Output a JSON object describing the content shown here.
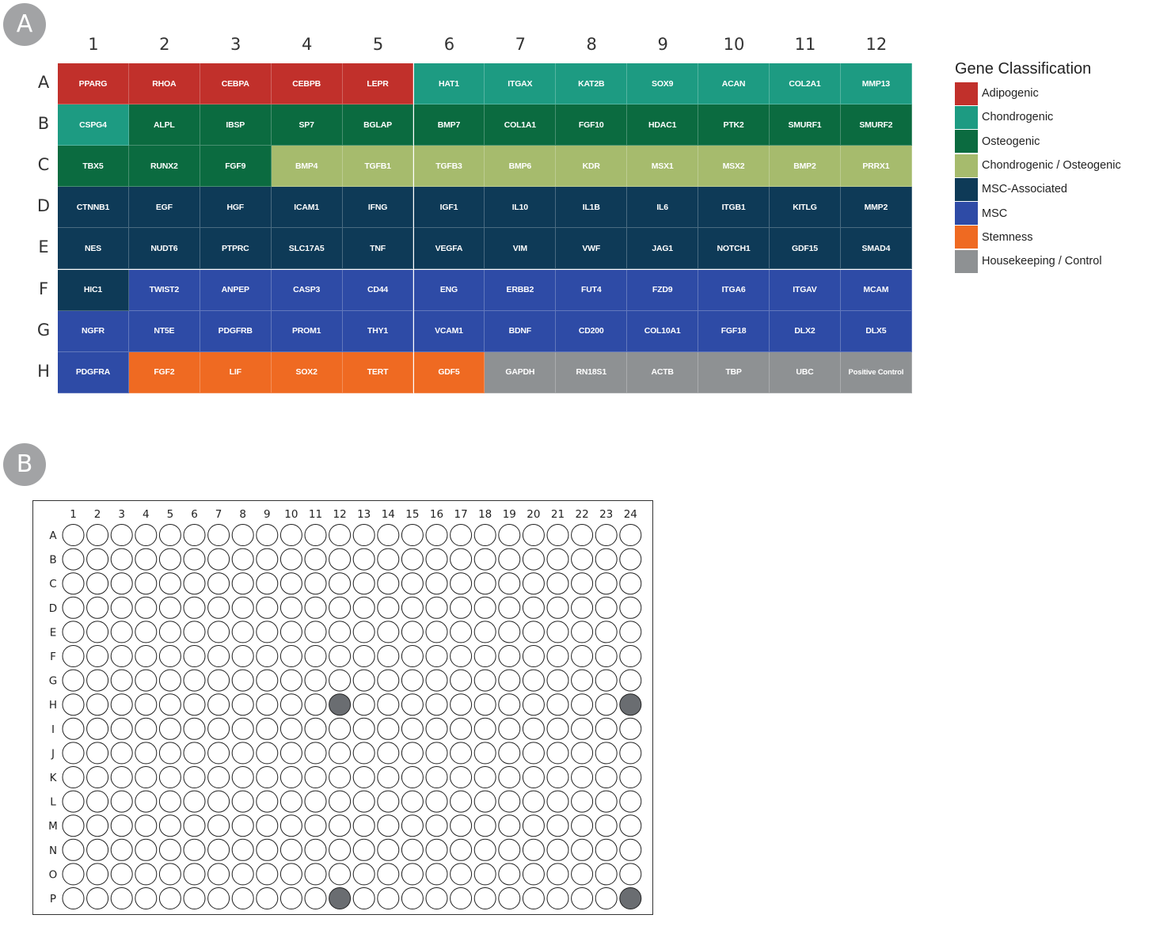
{
  "panel_a": {
    "badge": "A",
    "columns": [
      "1",
      "2",
      "3",
      "4",
      "5",
      "6",
      "7",
      "8",
      "9",
      "10",
      "11",
      "12"
    ],
    "rows": [
      "A",
      "B",
      "C",
      "D",
      "E",
      "F",
      "G",
      "H"
    ],
    "classes": {
      "adipogenic": {
        "label": "Adipogenic",
        "color": "#c1302b"
      },
      "chondrogenic": {
        "label": "Chondrogenic",
        "color": "#1d9b82"
      },
      "osteogenic": {
        "label": "Osteogenic",
        "color": "#0b6b40"
      },
      "chondro_osteo": {
        "label": "Chondrogenic / Osteogenic",
        "color": "#a6bb6d"
      },
      "msc_assoc": {
        "label": "MSC-Associated",
        "color": "#0e3a57"
      },
      "msc": {
        "label": "MSC",
        "color": "#2e4ba6"
      },
      "stemness": {
        "label": "Stemness",
        "color": "#ef6a22"
      },
      "housekeeping": {
        "label": "Housekeeping / Control",
        "color": "#8e9193"
      }
    },
    "legend": {
      "title": "Gene Classification",
      "order": [
        "adipogenic",
        "chondrogenic",
        "osteogenic",
        "chondro_osteo",
        "msc_assoc",
        "msc",
        "stemness",
        "housekeeping"
      ]
    },
    "wells": [
      [
        {
          "gene": "PPARG",
          "class": "adipogenic"
        },
        {
          "gene": "RHOA",
          "class": "adipogenic"
        },
        {
          "gene": "CEBPA",
          "class": "adipogenic"
        },
        {
          "gene": "CEBPB",
          "class": "adipogenic"
        },
        {
          "gene": "LEPR",
          "class": "adipogenic"
        },
        {
          "gene": "HAT1",
          "class": "chondrogenic"
        },
        {
          "gene": "ITGAX",
          "class": "chondrogenic"
        },
        {
          "gene": "KAT2B",
          "class": "chondrogenic"
        },
        {
          "gene": "SOX9",
          "class": "chondrogenic"
        },
        {
          "gene": "ACAN",
          "class": "chondrogenic"
        },
        {
          "gene": "COL2A1",
          "class": "chondrogenic"
        },
        {
          "gene": "MMP13",
          "class": "chondrogenic"
        }
      ],
      [
        {
          "gene": "CSPG4",
          "class": "chondrogenic"
        },
        {
          "gene": "ALPL",
          "class": "osteogenic"
        },
        {
          "gene": "IBSP",
          "class": "osteogenic"
        },
        {
          "gene": "SP7",
          "class": "osteogenic"
        },
        {
          "gene": "BGLAP",
          "class": "osteogenic"
        },
        {
          "gene": "BMP7",
          "class": "osteogenic"
        },
        {
          "gene": "COL1A1",
          "class": "osteogenic"
        },
        {
          "gene": "FGF10",
          "class": "osteogenic"
        },
        {
          "gene": "HDAC1",
          "class": "osteogenic"
        },
        {
          "gene": "PTK2",
          "class": "osteogenic"
        },
        {
          "gene": "SMURF1",
          "class": "osteogenic"
        },
        {
          "gene": "SMURF2",
          "class": "osteogenic"
        }
      ],
      [
        {
          "gene": "TBX5",
          "class": "osteogenic"
        },
        {
          "gene": "RUNX2",
          "class": "osteogenic"
        },
        {
          "gene": "FGF9",
          "class": "osteogenic"
        },
        {
          "gene": "BMP4",
          "class": "chondro_osteo"
        },
        {
          "gene": "TGFB1",
          "class": "chondro_osteo"
        },
        {
          "gene": "TGFB3",
          "class": "chondro_osteo"
        },
        {
          "gene": "BMP6",
          "class": "chondro_osteo"
        },
        {
          "gene": "KDR",
          "class": "chondro_osteo"
        },
        {
          "gene": "MSX1",
          "class": "chondro_osteo"
        },
        {
          "gene": "MSX2",
          "class": "chondro_osteo"
        },
        {
          "gene": "BMP2",
          "class": "chondro_osteo"
        },
        {
          "gene": "PRRX1",
          "class": "chondro_osteo"
        }
      ],
      [
        {
          "gene": "CTNNB1",
          "class": "msc_assoc"
        },
        {
          "gene": "EGF",
          "class": "msc_assoc"
        },
        {
          "gene": "HGF",
          "class": "msc_assoc"
        },
        {
          "gene": "ICAM1",
          "class": "msc_assoc"
        },
        {
          "gene": "IFNG",
          "class": "msc_assoc"
        },
        {
          "gene": "IGF1",
          "class": "msc_assoc"
        },
        {
          "gene": "IL10",
          "class": "msc_assoc"
        },
        {
          "gene": "IL1B",
          "class": "msc_assoc"
        },
        {
          "gene": "IL6",
          "class": "msc_assoc"
        },
        {
          "gene": "ITGB1",
          "class": "msc_assoc"
        },
        {
          "gene": "KITLG",
          "class": "msc_assoc"
        },
        {
          "gene": "MMP2",
          "class": "msc_assoc"
        }
      ],
      [
        {
          "gene": "NES",
          "class": "msc_assoc"
        },
        {
          "gene": "NUDT6",
          "class": "msc_assoc"
        },
        {
          "gene": "PTPRC",
          "class": "msc_assoc"
        },
        {
          "gene": "SLC17A5",
          "class": "msc_assoc"
        },
        {
          "gene": "TNF",
          "class": "msc_assoc"
        },
        {
          "gene": "VEGFA",
          "class": "msc_assoc"
        },
        {
          "gene": "VIM",
          "class": "msc_assoc"
        },
        {
          "gene": "VWF",
          "class": "msc_assoc"
        },
        {
          "gene": "JAG1",
          "class": "msc_assoc"
        },
        {
          "gene": "NOTCH1",
          "class": "msc_assoc"
        },
        {
          "gene": "GDF15",
          "class": "msc_assoc"
        },
        {
          "gene": "SMAD4",
          "class": "msc_assoc"
        }
      ],
      [
        {
          "gene": "HIC1",
          "class": "msc_assoc"
        },
        {
          "gene": "TWIST2",
          "class": "msc"
        },
        {
          "gene": "ANPEP",
          "class": "msc"
        },
        {
          "gene": "CASP3",
          "class": "msc"
        },
        {
          "gene": "CD44",
          "class": "msc"
        },
        {
          "gene": "ENG",
          "class": "msc"
        },
        {
          "gene": "ERBB2",
          "class": "msc"
        },
        {
          "gene": "FUT4",
          "class": "msc"
        },
        {
          "gene": "FZD9",
          "class": "msc"
        },
        {
          "gene": "ITGA6",
          "class": "msc"
        },
        {
          "gene": "ITGAV",
          "class": "msc"
        },
        {
          "gene": "MCAM",
          "class": "msc"
        }
      ],
      [
        {
          "gene": "NGFR",
          "class": "msc"
        },
        {
          "gene": "NT5E",
          "class": "msc"
        },
        {
          "gene": "PDGFRB",
          "class": "msc"
        },
        {
          "gene": "PROM1",
          "class": "msc"
        },
        {
          "gene": "THY1",
          "class": "msc"
        },
        {
          "gene": "VCAM1",
          "class": "msc"
        },
        {
          "gene": "BDNF",
          "class": "msc"
        },
        {
          "gene": "CD200",
          "class": "msc"
        },
        {
          "gene": "COL10A1",
          "class": "msc"
        },
        {
          "gene": "FGF18",
          "class": "msc"
        },
        {
          "gene": "DLX2",
          "class": "msc"
        },
        {
          "gene": "DLX5",
          "class": "msc"
        }
      ],
      [
        {
          "gene": "PDGFRA",
          "class": "msc"
        },
        {
          "gene": "FGF2",
          "class": "stemness"
        },
        {
          "gene": "LIF",
          "class": "stemness"
        },
        {
          "gene": "SOX2",
          "class": "stemness"
        },
        {
          "gene": "TERT",
          "class": "stemness"
        },
        {
          "gene": "GDF5",
          "class": "stemness"
        },
        {
          "gene": "GAPDH",
          "class": "housekeeping"
        },
        {
          "gene": "RN18S1",
          "class": "housekeeping"
        },
        {
          "gene": "ACTB",
          "class": "housekeeping"
        },
        {
          "gene": "TBP",
          "class": "housekeeping"
        },
        {
          "gene": "UBC",
          "class": "housekeeping"
        },
        {
          "gene": "Positive Control",
          "class": "housekeeping"
        }
      ]
    ]
  },
  "panel_b": {
    "badge": "B",
    "columns": [
      "1",
      "2",
      "3",
      "4",
      "5",
      "6",
      "7",
      "8",
      "9",
      "10",
      "11",
      "12",
      "13",
      "14",
      "15",
      "16",
      "17",
      "18",
      "19",
      "20",
      "21",
      "22",
      "23",
      "24"
    ],
    "rows": [
      "A",
      "B",
      "C",
      "D",
      "E",
      "F",
      "G",
      "H",
      "I",
      "J",
      "K",
      "L",
      "M",
      "N",
      "O",
      "P"
    ],
    "filled_wells": [
      "H12",
      "H24",
      "P12",
      "P24"
    ],
    "filled_color": "#6a6d71",
    "empty_color": "#ffffff"
  }
}
